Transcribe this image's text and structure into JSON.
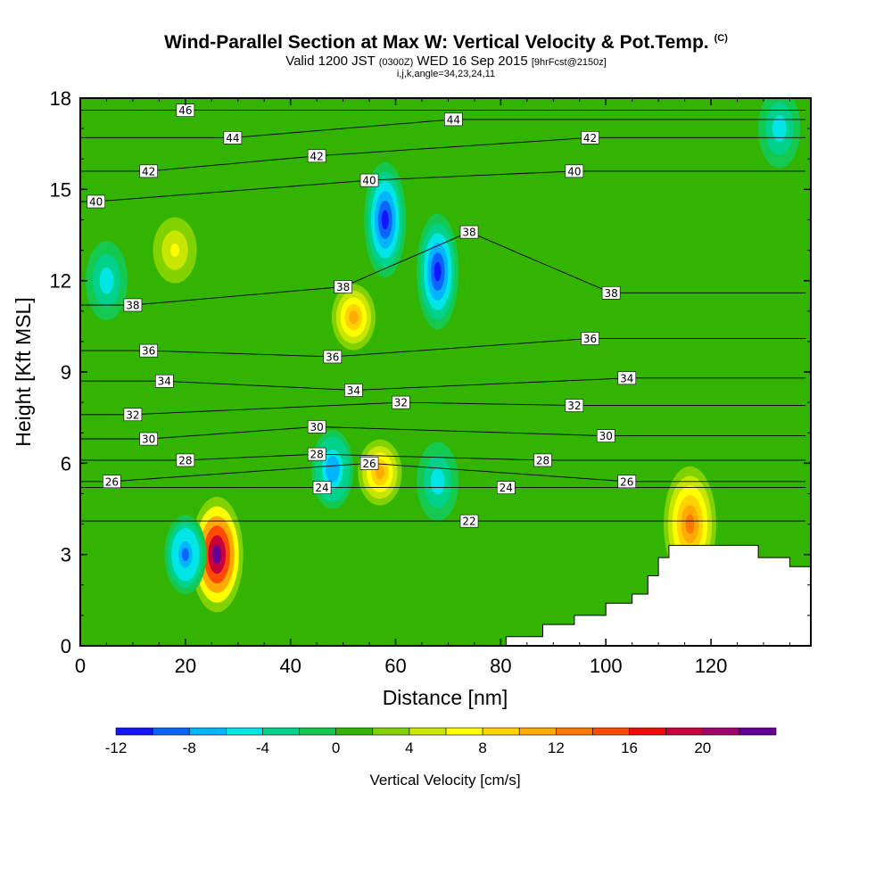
{
  "title": {
    "line1": "Wind-Parallel Section at Max W: Vertical Velocity & Pot.Temp.",
    "copyright": "(C)",
    "line2_main": "Valid 1200 JST",
    "line2_utc": "(0300Z)",
    "line2_date": "WED 16 Sep 2015",
    "line2_fcst": "[9hrFcst@2150z]",
    "line3": "i,j,k,angle=34,23,24,11"
  },
  "colorbar": {
    "label": "Vertical Velocity [cm/s]",
    "tick_labels": [
      "-12",
      "-8",
      "-4",
      "0",
      "4",
      "8",
      "12",
      "16",
      "20"
    ],
    "colors": [
      "#1414ff",
      "#0a64ff",
      "#00b4ff",
      "#00e6e6",
      "#00d28c",
      "#14c850",
      "#32b400",
      "#82d200",
      "#c8e600",
      "#ffff00",
      "#ffd200",
      "#ffaa00",
      "#ff7800",
      "#ff4b00",
      "#f00a0a",
      "#c8003c",
      "#a0006e",
      "#640096"
    ]
  },
  "chart_data": {
    "type": "heatmap",
    "title": "Wind-Parallel Section at Max W: Vertical Velocity & Pot.Temp.",
    "xlabel": "Distance [nm]",
    "ylabel": "Height [Kft MSL]",
    "xlim": [
      0,
      139
    ],
    "ylim": [
      0,
      18
    ],
    "x_ticks": [
      0,
      20,
      40,
      60,
      80,
      100,
      120
    ],
    "y_ticks": [
      0,
      3,
      6,
      9,
      12,
      15,
      18
    ],
    "color_variable": "Vertical Velocity [cm/s]",
    "color_range": [
      -12,
      24
    ],
    "velocity_features": [
      {
        "x": 26,
        "y": 3.0,
        "w": 22,
        "note": "max updraft"
      },
      {
        "x": 20,
        "y": 3.0,
        "w": -9
      },
      {
        "x": 58,
        "y": 14.0,
        "w": -12
      },
      {
        "x": 68,
        "y": 12.3,
        "w": -11
      },
      {
        "x": 48,
        "y": 5.8,
        "w": -8
      },
      {
        "x": 68,
        "y": 5.4,
        "w": -6
      },
      {
        "x": 52,
        "y": 10.8,
        "w": 10
      },
      {
        "x": 57,
        "y": 5.7,
        "w": 10
      },
      {
        "x": 116,
        "y": 4.0,
        "w": 12
      },
      {
        "x": 18,
        "y": 13.0,
        "w": 6
      },
      {
        "x": 5,
        "y": 12.0,
        "w": -5
      },
      {
        "x": 133,
        "y": 17.0,
        "w": -6
      }
    ],
    "contour_variable": "Potential Temperature",
    "contour_labels": [
      {
        "x": 20,
        "y": 17.6,
        "text": "46"
      },
      {
        "x": 29,
        "y": 16.7,
        "text": "44"
      },
      {
        "x": 71,
        "y": 17.3,
        "text": "44"
      },
      {
        "x": 13,
        "y": 15.6,
        "text": "42"
      },
      {
        "x": 45,
        "y": 16.1,
        "text": "42"
      },
      {
        "x": 97,
        "y": 16.7,
        "text": "42"
      },
      {
        "x": 3,
        "y": 14.6,
        "text": "40"
      },
      {
        "x": 55,
        "y": 15.3,
        "text": "40"
      },
      {
        "x": 94,
        "y": 15.6,
        "text": "40"
      },
      {
        "x": 74,
        "y": 13.6,
        "text": "38"
      },
      {
        "x": 50,
        "y": 11.8,
        "text": "38"
      },
      {
        "x": 10,
        "y": 11.2,
        "text": "38"
      },
      {
        "x": 101,
        "y": 11.6,
        "text": "38"
      },
      {
        "x": 13,
        "y": 9.7,
        "text": "36"
      },
      {
        "x": 48,
        "y": 9.5,
        "text": "36"
      },
      {
        "x": 97,
        "y": 10.1,
        "text": "36"
      },
      {
        "x": 16,
        "y": 8.7,
        "text": "34"
      },
      {
        "x": 52,
        "y": 8.4,
        "text": "34"
      },
      {
        "x": 104,
        "y": 8.8,
        "text": "34"
      },
      {
        "x": 61,
        "y": 8.0,
        "text": "32"
      },
      {
        "x": 10,
        "y": 7.6,
        "text": "32"
      },
      {
        "x": 94,
        "y": 7.9,
        "text": "32"
      },
      {
        "x": 45,
        "y": 7.2,
        "text": "30"
      },
      {
        "x": 13,
        "y": 6.8,
        "text": "30"
      },
      {
        "x": 100,
        "y": 6.9,
        "text": "30"
      },
      {
        "x": 45,
        "y": 6.3,
        "text": "28"
      },
      {
        "x": 20,
        "y": 6.1,
        "text": "28"
      },
      {
        "x": 88,
        "y": 6.1,
        "text": "28"
      },
      {
        "x": 55,
        "y": 6.0,
        "text": "26"
      },
      {
        "x": 6,
        "y": 5.4,
        "text": "26"
      },
      {
        "x": 104,
        "y": 5.4,
        "text": "26"
      },
      {
        "x": 46,
        "y": 5.2,
        "text": "24"
      },
      {
        "x": 81,
        "y": 5.2,
        "text": "24"
      },
      {
        "x": 74,
        "y": 4.1,
        "text": "22"
      }
    ],
    "terrain_profile": [
      [
        81,
        0
      ],
      [
        81,
        0.3
      ],
      [
        88,
        0.3
      ],
      [
        88,
        0.7
      ],
      [
        94,
        0.7
      ],
      [
        94,
        1.0
      ],
      [
        100,
        1.0
      ],
      [
        100,
        1.4
      ],
      [
        105,
        1.4
      ],
      [
        105,
        1.7
      ],
      [
        108,
        1.7
      ],
      [
        108,
        2.3
      ],
      [
        110,
        2.3
      ],
      [
        110,
        2.9
      ],
      [
        112,
        2.9
      ],
      [
        112,
        3.3
      ],
      [
        129,
        3.3
      ],
      [
        129,
        2.9
      ],
      [
        135,
        2.9
      ],
      [
        135,
        2.6
      ],
      [
        139,
        2.6
      ],
      [
        139,
        0
      ]
    ]
  }
}
